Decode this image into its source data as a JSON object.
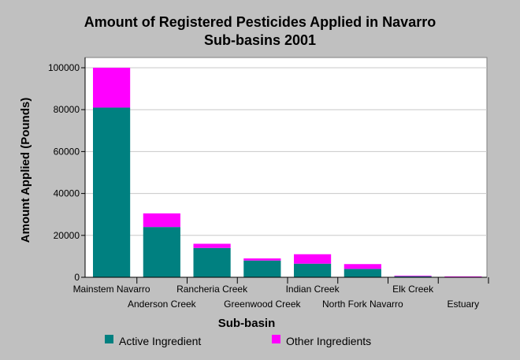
{
  "chart_data": {
    "type": "bar",
    "stacked": true,
    "title": [
      "Amount of Registered Pesticides Applied in Navarro",
      "Sub-basins 2001"
    ],
    "xlabel": "Sub-basin",
    "ylabel": "Amount Applied (Pounds)",
    "ylim": [
      0,
      100000
    ],
    "yticks": [
      0,
      20000,
      40000,
      60000,
      80000,
      100000
    ],
    "grid": true,
    "legend_position": "bottom",
    "categories": [
      "Mainstem Navarro",
      "Anderson Creek",
      "Rancheria Creek",
      "Greenwood Creek",
      "Indian Creek",
      "North Fork Navarro",
      "Elk Creek",
      "Estuary"
    ],
    "series": [
      {
        "name": "Active Ingredient",
        "color": "#008080",
        "values": [
          81000,
          24000,
          14000,
          8000,
          6500,
          4000,
          500,
          200
        ]
      },
      {
        "name": "Other Ingredients",
        "color": "#ff00ff",
        "values": [
          19000,
          6500,
          2000,
          1000,
          4500,
          2300,
          300,
          200
        ]
      }
    ]
  }
}
